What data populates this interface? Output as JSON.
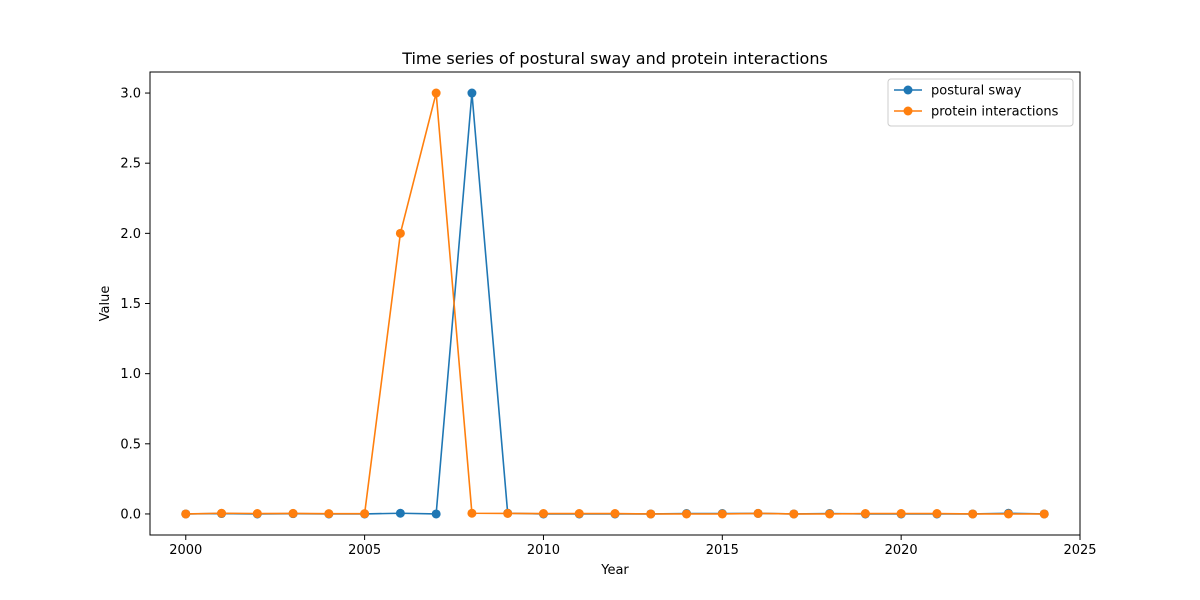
{
  "chart_data": {
    "type": "line",
    "title": "Time series of postural sway and protein interactions",
    "xlabel": "Year",
    "ylabel": "Value",
    "xlim": [
      1999,
      2025
    ],
    "ylim": [
      -0.15,
      3.15
    ],
    "xticks": [
      2000,
      2005,
      2010,
      2015,
      2020,
      2025
    ],
    "yticks": [
      0.0,
      0.5,
      1.0,
      1.5,
      2.0,
      2.5,
      3.0
    ],
    "ytick_labels": [
      "0.0",
      "0.5",
      "1.0",
      "1.5",
      "2.0",
      "2.5",
      "3.0"
    ],
    "legend_position": "top-right",
    "grid": false,
    "x": [
      2000,
      2001,
      2002,
      2003,
      2004,
      2005,
      2006,
      2007,
      2008,
      2009,
      2010,
      2011,
      2012,
      2013,
      2014,
      2015,
      2016,
      2017,
      2018,
      2019,
      2020,
      2021,
      2022,
      2023,
      2024
    ],
    "series": [
      {
        "name": "postural sway",
        "color": "#1f77b4",
        "values": [
          0.0,
          0.003,
          0.0,
          0.002,
          0.0,
          0.0,
          0.005,
          0.0,
          3.0,
          0.005,
          0.0,
          0.0,
          0.0,
          0.0,
          0.003,
          0.003,
          0.004,
          0.0,
          0.003,
          0.0,
          0.0,
          0.0,
          0.0,
          0.005,
          0.0
        ]
      },
      {
        "name": "protein interactions",
        "color": "#ff7f0e",
        "values": [
          0.0,
          0.005,
          0.003,
          0.004,
          0.002,
          0.002,
          2.0,
          3.0,
          0.005,
          0.004,
          0.003,
          0.003,
          0.003,
          0.0,
          0.0,
          0.0,
          0.004,
          0.0,
          0.0,
          0.003,
          0.003,
          0.003,
          0.0,
          0.0,
          0.0
        ]
      }
    ]
  }
}
